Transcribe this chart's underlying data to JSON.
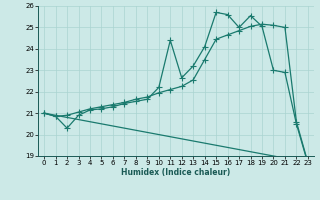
{
  "xlabel": "Humidex (Indice chaleur)",
  "background_color": "#cce9e7",
  "grid_color": "#aad4d1",
  "line_color": "#1a7a6e",
  "xlim": [
    -0.5,
    23.5
  ],
  "ylim": [
    19,
    26
  ],
  "xticks": [
    0,
    1,
    2,
    3,
    4,
    5,
    6,
    7,
    8,
    9,
    10,
    11,
    12,
    13,
    14,
    15,
    16,
    17,
    18,
    19,
    20,
    21,
    22,
    23
  ],
  "yticks": [
    19,
    20,
    21,
    22,
    23,
    24,
    25,
    26
  ],
  "series": [
    {
      "x": [
        0,
        1,
        2,
        3,
        4,
        5,
        6,
        7,
        8,
        9,
        10,
        11,
        12,
        13,
        14,
        15,
        16,
        17,
        18,
        19,
        20,
        21,
        22,
        23
      ],
      "y": [
        21.0,
        20.85,
        20.3,
        20.9,
        21.15,
        21.2,
        21.3,
        21.45,
        21.55,
        21.65,
        22.2,
        24.4,
        22.65,
        23.2,
        24.1,
        25.7,
        25.6,
        25.0,
        25.55,
        25.05,
        23.0,
        22.9,
        20.5,
        18.65
      ],
      "marker": "+",
      "markersize": 4,
      "linewidth": 0.9
    },
    {
      "x": [
        0,
        1,
        2,
        3,
        4,
        5,
        6,
        7,
        8,
        9,
        10,
        11,
        12,
        13,
        14,
        15,
        16,
        17,
        18,
        19,
        20,
        21,
        22,
        23
      ],
      "y": [
        21.0,
        20.85,
        20.9,
        21.05,
        21.2,
        21.3,
        21.4,
        21.5,
        21.65,
        21.75,
        21.95,
        22.1,
        22.25,
        22.55,
        23.5,
        24.45,
        24.65,
        24.85,
        25.05,
        25.15,
        25.1,
        25.0,
        20.6,
        18.7
      ],
      "marker": "+",
      "markersize": 4,
      "linewidth": 0.9
    },
    {
      "x": [
        0,
        23
      ],
      "y": [
        21.0,
        18.7
      ],
      "marker": null,
      "markersize": 0,
      "linewidth": 0.9
    }
  ]
}
